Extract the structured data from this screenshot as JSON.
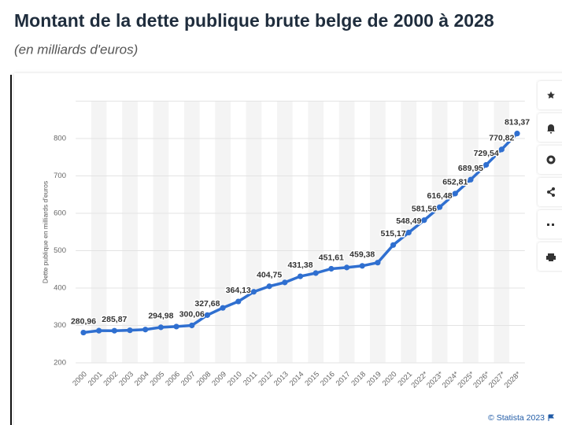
{
  "chart_data": {
    "type": "line",
    "title": "Montant de la dette publique brute belge de 2000 à 2028",
    "subtitle": "(en milliards d'euros)",
    "y_label": "Dette publique en milliards d'euros",
    "source": "© Statista 2023",
    "categories": [
      "2000",
      "2001",
      "2002",
      "2003",
      "2004",
      "2005",
      "2006",
      "2007",
      "2008",
      "2009",
      "2010",
      "2011",
      "2012",
      "2013",
      "2014",
      "2015",
      "2016",
      "2017",
      "2018",
      "2019",
      "2020",
      "2021",
      "2022*",
      "2023*",
      "2024*",
      "2025*",
      "2026*",
      "2027*",
      "2028*"
    ],
    "series": [
      {
        "name": "Dette publique",
        "color": "#2f6fd0",
        "values": [
          280.96,
          286,
          285.87,
          287,
          289,
          294.98,
          297,
          300.06,
          327.68,
          347,
          364.13,
          390,
          404.75,
          415,
          431.38,
          440,
          451.61,
          455,
          459.38,
          468,
          515.17,
          548.49,
          581.56,
          616.48,
          652.81,
          689.95,
          729.54,
          770.82,
          813.37
        ],
        "value_labels": [
          "280,96",
          null,
          "285,87",
          null,
          null,
          "294,98",
          null,
          "300,06",
          "327,68",
          null,
          "364,13",
          null,
          "404,75",
          null,
          "431,38",
          null,
          "451,61",
          null,
          "459,38",
          null,
          "515,17",
          "548,49",
          "581,56",
          "616,48",
          "652,81",
          "689,95",
          "729,54",
          "770,82",
          "813,37"
        ]
      }
    ],
    "ylim": [
      200,
      900
    ],
    "yticks": [
      200,
      300,
      400,
      500,
      600,
      700,
      800
    ],
    "grid": true
  }
}
